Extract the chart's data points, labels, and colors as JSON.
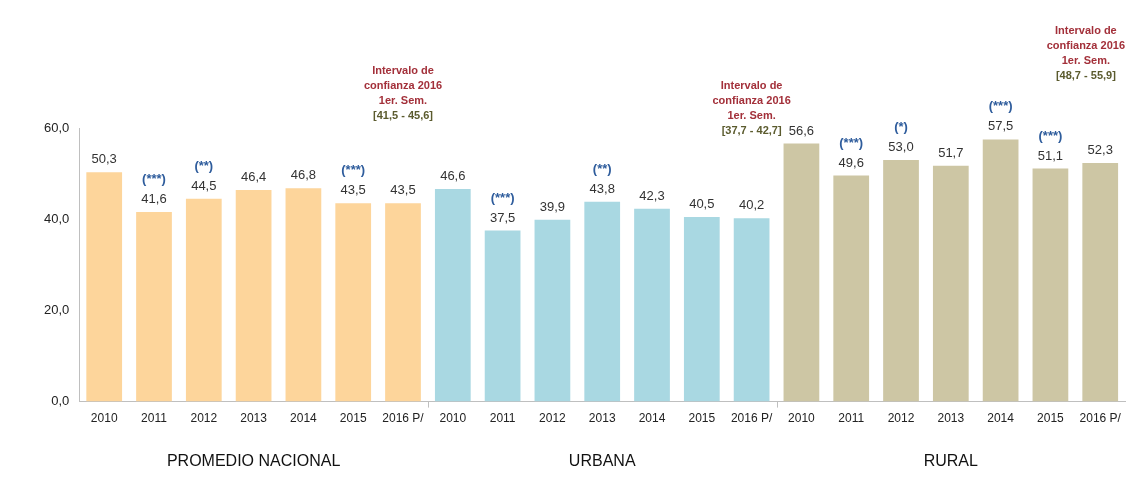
{
  "chart_data": {
    "type": "bar",
    "categories": [
      "2010",
      "2011",
      "2012",
      "2013",
      "2014",
      "2015",
      "2016 P/",
      "2010",
      "2011",
      "2012",
      "2013",
      "2014",
      "2015",
      "2016 P/",
      "2010",
      "2011",
      "2012",
      "2013",
      "2014",
      "2015",
      "2016 P/"
    ],
    "values": [
      50.3,
      41.6,
      44.5,
      46.4,
      46.8,
      43.5,
      43.5,
      46.6,
      37.5,
      39.9,
      43.8,
      42.3,
      40.5,
      40.2,
      56.6,
      49.6,
      53.0,
      51.7,
      57.5,
      51.1,
      52.3
    ],
    "colors": [
      "#fdd59b",
      "#fdd59b",
      "#fdd59b",
      "#fdd59b",
      "#fdd59b",
      "#fdd59b",
      "#fdd59b",
      "#a9d8e2",
      "#a9d8e2",
      "#a9d8e2",
      "#a9d8e2",
      "#a9d8e2",
      "#a9d8e2",
      "#a9d8e2",
      "#cdc6a4",
      "#cdc6a4",
      "#cdc6a4",
      "#cdc6a4",
      "#cdc6a4",
      "#cdc6a4",
      "#cdc6a4"
    ],
    "value_labels": [
      "50,3",
      "(***)\n41,6",
      "(**)\n44,5",
      "46,4",
      "46,8",
      "(***)\n43,5",
      "43,5",
      "46,6",
      "(***)\n37,5",
      "39,9",
      "(**)\n43,8",
      "42,3",
      "40,5",
      "40,2",
      "56,6",
      "(***)\n49,6",
      "(*)\n53,0",
      "51,7",
      "(***)\n57,5",
      "(***)\n51,1",
      "52,3"
    ],
    "ylim": [
      0,
      60
    ],
    "yticks": [
      {
        "value": 0,
        "label": "0,0"
      },
      {
        "value": 20,
        "label": "20,0"
      },
      {
        "value": 40,
        "label": "40,0"
      },
      {
        "value": 60,
        "label": "60,0"
      }
    ],
    "grid": false,
    "legend": false,
    "annotations": [
      "PROMEDIO NACIONAL",
      "URBANA",
      "RURAL",
      "Intervalo de\nconfianza 2016\n1er. Sem.\n[41,5 - 45,6]",
      "Intervalo de\nconfianza 2016\n1er. Sem.\n[37,7 - 42,7]",
      "Intervalo de\nconfianza 2016\n1er. Sem.\n[48,7 - 55,9]"
    ]
  }
}
